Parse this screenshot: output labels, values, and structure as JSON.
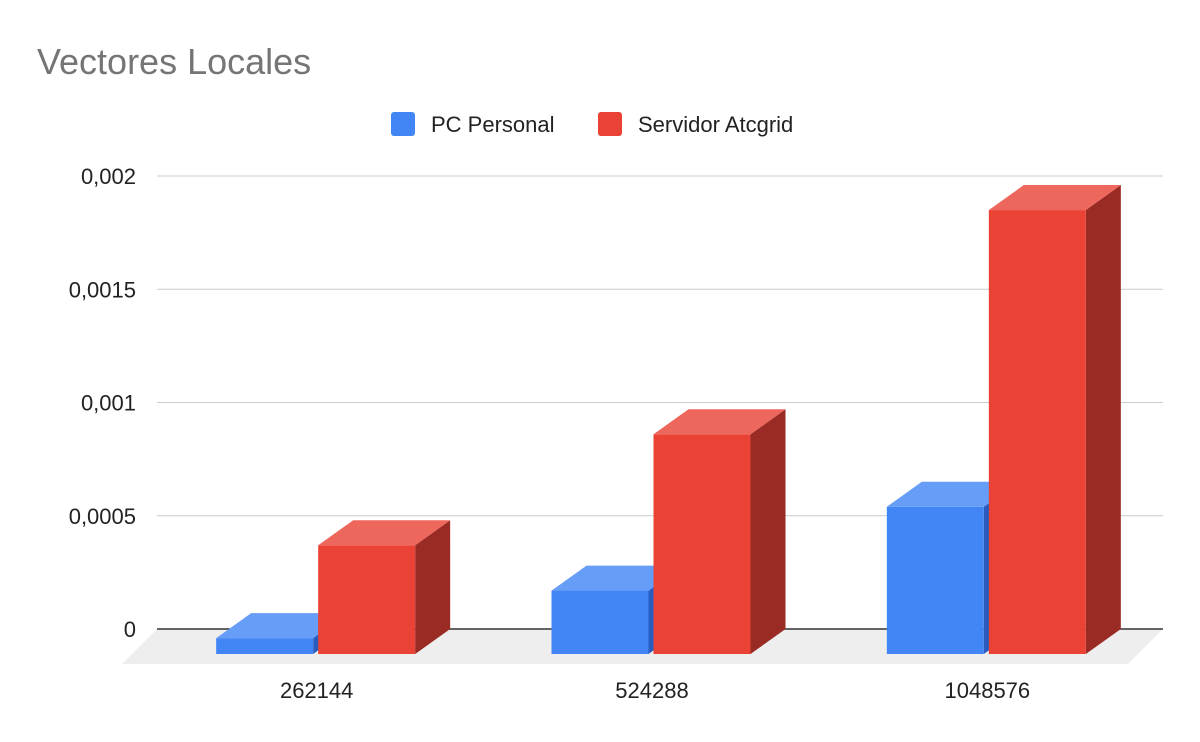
{
  "chart_data": {
    "type": "bar",
    "title": "Vectores Locales",
    "xlabel": "",
    "ylabel": "",
    "categories": [
      "262144",
      "524288",
      "1048576"
    ],
    "series": [
      {
        "name": "PC Personal",
        "values": [
          7e-05,
          0.00028,
          0.00065
        ],
        "color": "#4285f4",
        "top_color": "#669df6",
        "side_color": "#2a5bbf"
      },
      {
        "name": "Servidor Atcgrid",
        "values": [
          0.00048,
          0.00097,
          0.00196
        ],
        "color": "#ea4335",
        "top_color": "#ee675c",
        "side_color": "#992b24"
      }
    ],
    "ylim": [
      0,
      0.002
    ],
    "yticks": [
      0,
      0.0005,
      0.001,
      0.0015,
      0.002
    ],
    "ytick_labels": [
      "0",
      "0,0005",
      "0,001",
      "0,0015",
      "0,002"
    ],
    "grid": true,
    "legend_position": "top-center",
    "style": "3d"
  }
}
